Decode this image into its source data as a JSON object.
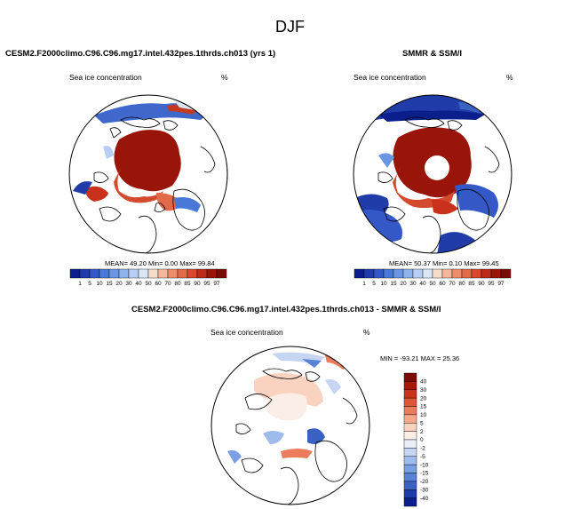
{
  "title": "DJF",
  "panels": {
    "model": {
      "title": "CESM2.F2000climo.C96.C96.mg17.intel.432pes.1thrds.ch013 (yrs 1)",
      "variable": "Sea ice concentration",
      "units": "%",
      "stats": "MEAN=  49.20  Min=   0.00  Max=  99.84"
    },
    "obs": {
      "title": "SMMR & SSM/I",
      "variable": "Sea ice concentration",
      "units": "%",
      "stats": "MEAN=  50.37  Min=   0.10  Max=  99.45"
    },
    "diff": {
      "title": "CESM2.F2000climo.C96.C96.mg17.intel.432pes.1thrds.ch013 - SMMR & SSM/I",
      "variable": "Sea ice concentration",
      "units": "%",
      "stats": "MIN = -93.21  MAX =  25.36"
    }
  },
  "colorbar_conc": {
    "labels": [
      "1",
      "5",
      "10",
      "15",
      "20",
      "30",
      "40",
      "50",
      "60",
      "70",
      "80",
      "85",
      "90",
      "95",
      "97"
    ],
    "colors": [
      "#0a1e8c",
      "#1f3ca8",
      "#3458c6",
      "#4a78d8",
      "#6a96e4",
      "#8fb3ee",
      "#b7cff4",
      "#dbe6f7",
      "#f7dccb",
      "#f2b79c",
      "#ec8e6c",
      "#e26a48",
      "#d44a2e",
      "#bd2a18",
      "#9a1509",
      "#7d0b05"
    ]
  },
  "colorbar_diff": {
    "labels": [
      "40",
      "30",
      "20",
      "15",
      "10",
      "5",
      "2",
      "0",
      "-2",
      "-5",
      "-10",
      "-15",
      "-20",
      "-30",
      "-40"
    ],
    "colors": [
      "#7d0b05",
      "#a8180b",
      "#c9311c",
      "#df5535",
      "#ec7d5c",
      "#f4a78b",
      "#f9d2c0",
      "#fbeee7",
      "#e9eef8",
      "#c6d6f2",
      "#9ebbec",
      "#7b9fe3",
      "#5a82d6",
      "#3a62c2",
      "#1f3ca8",
      "#0a1e8c"
    ]
  }
}
